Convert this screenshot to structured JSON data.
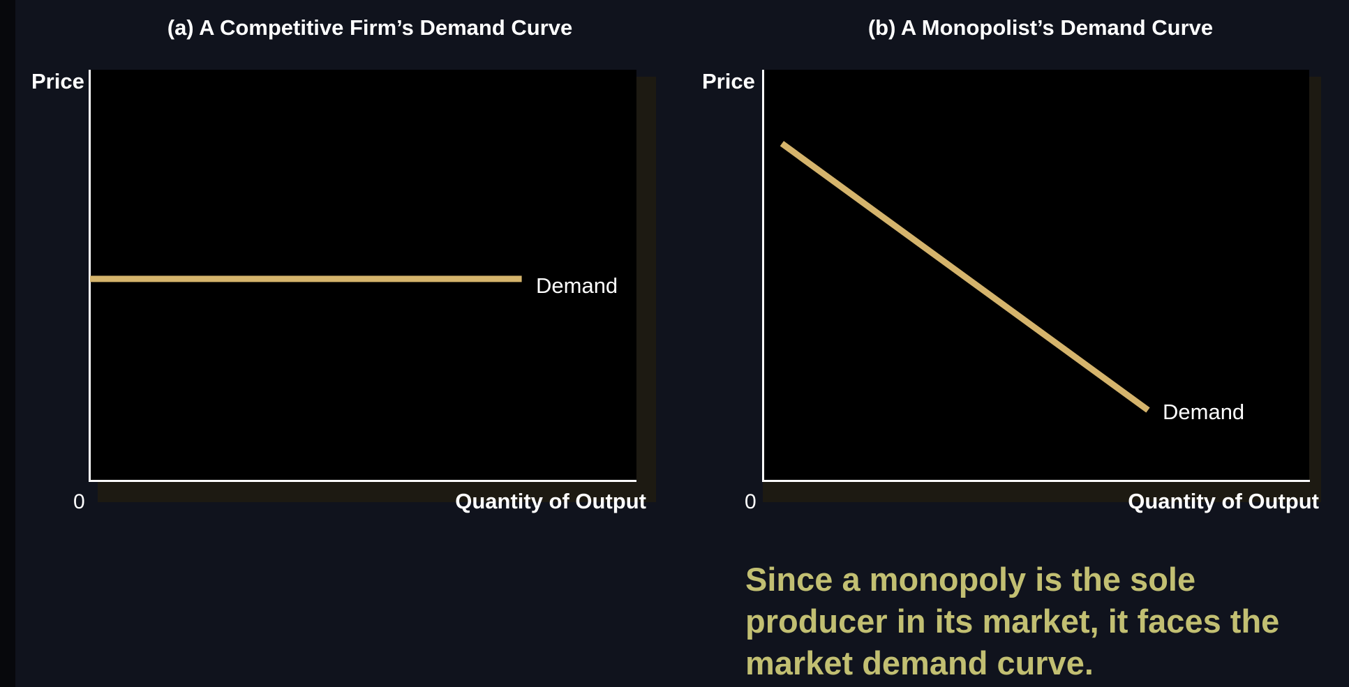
{
  "colors": {
    "background": "#10131d",
    "plot_background": "#000000",
    "axis": "#ffffff",
    "curve": "#d5b46c",
    "caption": "#c2bf72"
  },
  "chart_data": [
    {
      "type": "line",
      "title": "(a) A Competitive Firm’s Demand Curve",
      "ylabel": "Price",
      "xlabel": "Quantity of Output",
      "origin_label": "0",
      "grid": false,
      "xlim": [
        0,
        100
      ],
      "ylim": [
        0,
        100
      ],
      "series": [
        {
          "name": "Demand",
          "x": [
            0,
            79
          ],
          "y": [
            49,
            49
          ]
        }
      ]
    },
    {
      "type": "line",
      "title": "(b) A Monopolist’s Demand Curve",
      "ylabel": "Price",
      "xlabel": "Quantity of Output",
      "origin_label": "0",
      "grid": false,
      "xlim": [
        0,
        100
      ],
      "ylim": [
        0,
        100
      ],
      "series": [
        {
          "name": "Demand",
          "x": [
            3.5,
            70.5
          ],
          "y": [
            82,
            17
          ]
        }
      ]
    }
  ],
  "caption": "Since a monopoly is the sole producer in its market, it faces the market demand curve."
}
